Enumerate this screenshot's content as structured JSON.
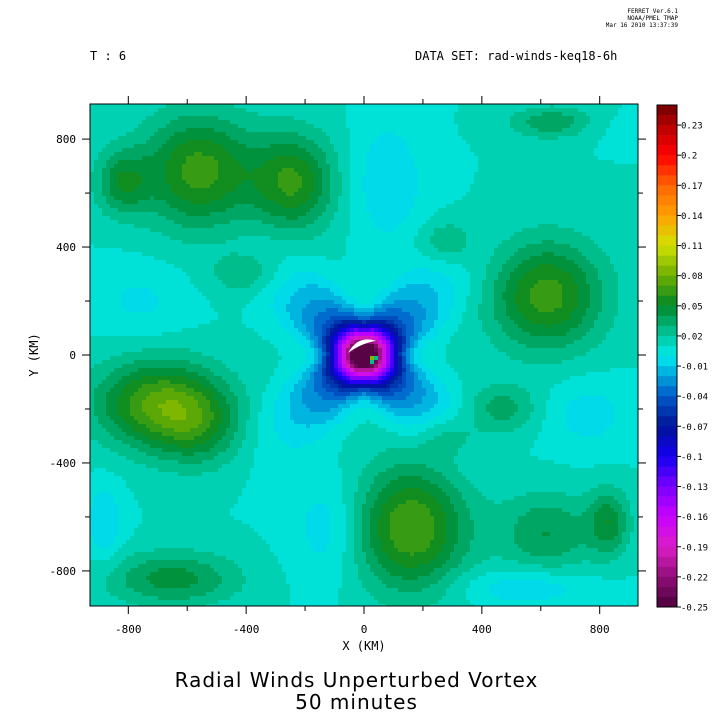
{
  "header": {
    "stamp_line1": "FERRET Ver.6.1",
    "stamp_line2": "NOAA/PMEL TMAP",
    "stamp_line3": "Mar 16 2010 13:37:39",
    "time_label": "T : 6",
    "dataset_label": "DATA SET: rad-winds-keq18-6h"
  },
  "chart_data": {
    "type": "heatmap",
    "title": "Radial Winds Unperturbed Vortex",
    "subtitle": "50 minutes",
    "xlabel": "X (KM)",
    "ylabel": "Y (KM)",
    "xlim": [
      -930,
      930
    ],
    "ylim": [
      -930,
      930
    ],
    "xticks": [
      -800,
      -400,
      0,
      400,
      800
    ],
    "yticks": [
      -800,
      -400,
      0,
      400,
      800
    ],
    "xtick_labels": [
      "-800",
      "-400",
      "0",
      "400",
      "800"
    ],
    "ytick_labels": [
      "-800",
      "-400",
      "0",
      "400",
      "800"
    ],
    "colorbar": {
      "min": -0.25,
      "max": 0.25,
      "step": 0.01,
      "labels": [
        "0.23",
        "0.2",
        "0.17",
        "0.14",
        "0.11",
        "0.08",
        "0.05",
        "0.02",
        "-0.01",
        "-0.04",
        "-0.07",
        "-0.1",
        "-0.13",
        "-0.16",
        "-0.19",
        "-0.22",
        "-0.25"
      ],
      "label_values": [
        0.23,
        0.2,
        0.17,
        0.14,
        0.11,
        0.08,
        0.05,
        0.02,
        -0.01,
        -0.04,
        -0.07,
        -0.1,
        -0.13,
        -0.16,
        -0.19,
        -0.22,
        -0.25
      ]
    },
    "field": {
      "background": 0.01,
      "features": [
        {
          "x": -560,
          "y": 680,
          "sx": 190,
          "sy": 210,
          "a": 0.055
        },
        {
          "x": -240,
          "y": 640,
          "sx": 140,
          "sy": 180,
          "a": 0.05
        },
        {
          "x": -820,
          "y": 640,
          "sx": 90,
          "sy": 120,
          "a": 0.035
        },
        {
          "x": 620,
          "y": 220,
          "sx": 190,
          "sy": 200,
          "a": 0.055
        },
        {
          "x": -700,
          "y": -180,
          "sx": 210,
          "sy": 160,
          "a": 0.06
        },
        {
          "x": -560,
          "y": -270,
          "sx": 150,
          "sy": 150,
          "a": 0.03
        },
        {
          "x": 160,
          "y": -640,
          "sx": 190,
          "sy": 230,
          "a": 0.06
        },
        {
          "x": -650,
          "y": -830,
          "sx": 220,
          "sy": 100,
          "a": 0.035
        },
        {
          "x": 620,
          "y": -660,
          "sx": 160,
          "sy": 150,
          "a": 0.03
        },
        {
          "x": 830,
          "y": -620,
          "sx": 70,
          "sy": 120,
          "a": 0.035
        },
        {
          "x": 650,
          "y": 860,
          "sx": 150,
          "sy": 60,
          "a": 0.035
        },
        {
          "x": 470,
          "y": -200,
          "sx": 120,
          "sy": 90,
          "a": 0.025
        },
        {
          "x": -400,
          "y": 300,
          "sx": 120,
          "sy": 80,
          "a": 0.02
        },
        {
          "x": 280,
          "y": -300,
          "sx": 110,
          "sy": 80,
          "a": 0.02
        },
        {
          "x": 280,
          "y": 420,
          "sx": 90,
          "sy": 80,
          "a": 0.02
        },
        {
          "x": 80,
          "y": 640,
          "sx": 120,
          "sy": 220,
          "a": -0.02
        },
        {
          "x": -120,
          "y": -640,
          "sx": 120,
          "sy": 200,
          "a": -0.018
        },
        {
          "x": 760,
          "y": -220,
          "sx": 150,
          "sy": 130,
          "a": -0.015
        },
        {
          "x": -760,
          "y": 200,
          "sx": 160,
          "sy": 140,
          "a": -0.012
        },
        {
          "x": -880,
          "y": -620,
          "sx": 60,
          "sy": 140,
          "a": -0.02
        },
        {
          "x": 550,
          "y": -860,
          "sx": 220,
          "sy": 70,
          "a": -0.02
        },
        {
          "x": 740,
          "y": 850,
          "sx": 180,
          "sy": 60,
          "a": -0.01
        }
      ],
      "vortex": {
        "amplitude": -0.24,
        "core_radius": 95,
        "outer_radius": 230,
        "lobe_scale": 0.7
      },
      "core": [
        {
          "x": 30,
          "y": -15,
          "r": 14,
          "v": 0.02
        },
        {
          "x": 30,
          "y": -15,
          "r": 6,
          "v": 0.08
        }
      ]
    }
  }
}
